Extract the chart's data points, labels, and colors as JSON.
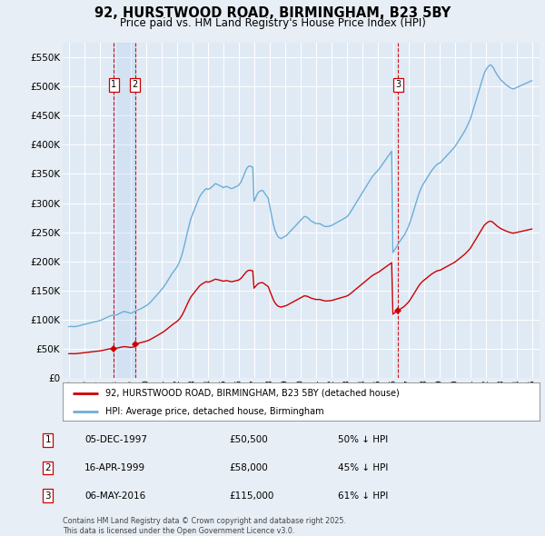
{
  "title": "92, HURSTWOOD ROAD, BIRMINGHAM, B23 5BY",
  "subtitle": "Price paid vs. HM Land Registry's House Price Index (HPI)",
  "legend_house": "92, HURSTWOOD ROAD, BIRMINGHAM, B23 5BY (detached house)",
  "legend_hpi": "HPI: Average price, detached house, Birmingham",
  "footer": "Contains HM Land Registry data © Crown copyright and database right 2025.\nThis data is licensed under the Open Government Licence v3.0.",
  "transactions": [
    {
      "num": 1,
      "date": "05-DEC-1997",
      "price": "£50,500",
      "hpi": "50% ↓ HPI",
      "year": 1997.92,
      "value": 50500
    },
    {
      "num": 2,
      "date": "16-APR-1999",
      "price": "£58,000",
      "hpi": "45% ↓ HPI",
      "year": 1999.29,
      "value": 58000
    },
    {
      "num": 3,
      "date": "06-MAY-2016",
      "price": "£115,000",
      "hpi": "61% ↓ HPI",
      "year": 2016.34,
      "value": 115000
    }
  ],
  "hpi_line_color": "#6baed6",
  "house_line_color": "#cc0000",
  "vline_color": "#cc0000",
  "shade_color": "#ddeeff",
  "bg_color": "#e8eef5",
  "plot_bg_color": "#e0eaf5",
  "grid_color": "#ffffff",
  "ylim": [
    0,
    575000
  ],
  "yticks": [
    0,
    50000,
    100000,
    150000,
    200000,
    250000,
    300000,
    350000,
    400000,
    450000,
    500000,
    550000
  ],
  "xlim": [
    1994.6,
    2025.5
  ],
  "xtick_years": [
    1995,
    1996,
    1997,
    1998,
    1999,
    2000,
    2001,
    2002,
    2003,
    2004,
    2005,
    2006,
    2007,
    2008,
    2009,
    2010,
    2011,
    2012,
    2013,
    2014,
    2015,
    2016,
    2017,
    2018,
    2019,
    2020,
    2021,
    2022,
    2023,
    2024,
    2025
  ],
  "hpi_years": [
    1995.0,
    1995.083,
    1995.167,
    1995.25,
    1995.333,
    1995.417,
    1995.5,
    1995.583,
    1995.667,
    1995.75,
    1995.833,
    1995.917,
    1996.0,
    1996.083,
    1996.167,
    1996.25,
    1996.333,
    1996.417,
    1996.5,
    1996.583,
    1996.667,
    1996.75,
    1996.833,
    1996.917,
    1997.0,
    1997.083,
    1997.167,
    1997.25,
    1997.333,
    1997.417,
    1997.5,
    1997.583,
    1997.667,
    1997.75,
    1997.833,
    1997.917,
    1998.0,
    1998.083,
    1998.167,
    1998.25,
    1998.333,
    1998.417,
    1998.5,
    1998.583,
    1998.667,
    1998.75,
    1998.833,
    1998.917,
    1999.0,
    1999.083,
    1999.167,
    1999.25,
    1999.333,
    1999.417,
    1999.5,
    1999.583,
    1999.667,
    1999.75,
    1999.833,
    1999.917,
    2000.0,
    2000.083,
    2000.167,
    2000.25,
    2000.333,
    2000.417,
    2000.5,
    2000.583,
    2000.667,
    2000.75,
    2000.833,
    2000.917,
    2001.0,
    2001.083,
    2001.167,
    2001.25,
    2001.333,
    2001.417,
    2001.5,
    2001.583,
    2001.667,
    2001.75,
    2001.833,
    2001.917,
    2002.0,
    2002.083,
    2002.167,
    2002.25,
    2002.333,
    2002.417,
    2002.5,
    2002.583,
    2002.667,
    2002.75,
    2002.833,
    2002.917,
    2003.0,
    2003.083,
    2003.167,
    2003.25,
    2003.333,
    2003.417,
    2003.5,
    2003.583,
    2003.667,
    2003.75,
    2003.833,
    2003.917,
    2004.0,
    2004.083,
    2004.167,
    2004.25,
    2004.333,
    2004.417,
    2004.5,
    2004.583,
    2004.667,
    2004.75,
    2004.833,
    2004.917,
    2005.0,
    2005.083,
    2005.167,
    2005.25,
    2005.333,
    2005.417,
    2005.5,
    2005.583,
    2005.667,
    2005.75,
    2005.833,
    2005.917,
    2006.0,
    2006.083,
    2006.167,
    2006.25,
    2006.333,
    2006.417,
    2006.5,
    2006.583,
    2006.667,
    2006.75,
    2006.833,
    2006.917,
    2007.0,
    2007.083,
    2007.167,
    2007.25,
    2007.333,
    2007.417,
    2007.5,
    2007.583,
    2007.667,
    2007.75,
    2007.833,
    2007.917,
    2008.0,
    2008.083,
    2008.167,
    2008.25,
    2008.333,
    2008.417,
    2008.5,
    2008.583,
    2008.667,
    2008.75,
    2008.833,
    2008.917,
    2009.0,
    2009.083,
    2009.167,
    2009.25,
    2009.333,
    2009.417,
    2009.5,
    2009.583,
    2009.667,
    2009.75,
    2009.833,
    2009.917,
    2010.0,
    2010.083,
    2010.167,
    2010.25,
    2010.333,
    2010.417,
    2010.5,
    2010.583,
    2010.667,
    2010.75,
    2010.833,
    2010.917,
    2011.0,
    2011.083,
    2011.167,
    2011.25,
    2011.333,
    2011.417,
    2011.5,
    2011.583,
    2011.667,
    2011.75,
    2011.833,
    2011.917,
    2012.0,
    2012.083,
    2012.167,
    2012.25,
    2012.333,
    2012.417,
    2012.5,
    2012.583,
    2012.667,
    2012.75,
    2012.833,
    2012.917,
    2013.0,
    2013.083,
    2013.167,
    2013.25,
    2013.333,
    2013.417,
    2013.5,
    2013.583,
    2013.667,
    2013.75,
    2013.833,
    2013.917,
    2014.0,
    2014.083,
    2014.167,
    2014.25,
    2014.333,
    2014.417,
    2014.5,
    2014.583,
    2014.667,
    2014.75,
    2014.833,
    2014.917,
    2015.0,
    2015.083,
    2015.167,
    2015.25,
    2015.333,
    2015.417,
    2015.5,
    2015.583,
    2015.667,
    2015.75,
    2015.833,
    2015.917,
    2016.0,
    2016.083,
    2016.167,
    2016.25,
    2016.333,
    2016.417,
    2016.5,
    2016.583,
    2016.667,
    2016.75,
    2016.833,
    2016.917,
    2017.0,
    2017.083,
    2017.167,
    2017.25,
    2017.333,
    2017.417,
    2017.5,
    2017.583,
    2017.667,
    2017.75,
    2017.833,
    2017.917,
    2018.0,
    2018.083,
    2018.167,
    2018.25,
    2018.333,
    2018.417,
    2018.5,
    2018.583,
    2018.667,
    2018.75,
    2018.833,
    2018.917,
    2019.0,
    2019.083,
    2019.167,
    2019.25,
    2019.333,
    2019.417,
    2019.5,
    2019.583,
    2019.667,
    2019.75,
    2019.833,
    2019.917,
    2020.0,
    2020.083,
    2020.167,
    2020.25,
    2020.333,
    2020.417,
    2020.5,
    2020.583,
    2020.667,
    2020.75,
    2020.833,
    2020.917,
    2021.0,
    2021.083,
    2021.167,
    2021.25,
    2021.333,
    2021.417,
    2021.5,
    2021.583,
    2021.667,
    2021.75,
    2021.833,
    2021.917,
    2022.0,
    2022.083,
    2022.167,
    2022.25,
    2022.333,
    2022.417,
    2022.5,
    2022.583,
    2022.667,
    2022.75,
    2022.833,
    2022.917,
    2023.0,
    2023.083,
    2023.167,
    2023.25,
    2023.333,
    2023.417,
    2023.5,
    2023.583,
    2023.667,
    2023.75,
    2023.833,
    2023.917,
    2024.0,
    2024.083,
    2024.167,
    2024.25,
    2024.333,
    2024.417,
    2024.5,
    2024.583,
    2024.667,
    2024.75,
    2024.833,
    2024.917,
    2025.0
  ],
  "hpi_values": [
    88000,
    88200,
    88400,
    88100,
    87800,
    88100,
    88500,
    89000,
    89500,
    90200,
    90800,
    91300,
    91800,
    92300,
    92900,
    93500,
    94100,
    94700,
    95200,
    95700,
    96200,
    96700,
    97200,
    97700,
    98200,
    99100,
    100000,
    101100,
    102200,
    103300,
    104300,
    105200,
    106100,
    107000,
    107800,
    107200,
    107600,
    108100,
    109000,
    110100,
    111200,
    112300,
    113200,
    114000,
    113500,
    112900,
    112200,
    111500,
    110800,
    111700,
    112600,
    113600,
    114700,
    115800,
    116800,
    117800,
    118800,
    119900,
    121100,
    122400,
    123700,
    125200,
    126800,
    129000,
    131300,
    133700,
    136100,
    138600,
    141100,
    143700,
    146200,
    148800,
    151400,
    154100,
    156900,
    160200,
    163700,
    167200,
    170800,
    174500,
    178200,
    181200,
    184200,
    187200,
    190200,
    194500,
    198900,
    205100,
    211700,
    220000,
    228700,
    238500,
    248400,
    257300,
    266200,
    274200,
    279700,
    285200,
    290800,
    296400,
    301900,
    307400,
    312000,
    315600,
    318200,
    320800,
    323400,
    325100,
    323400,
    324400,
    325400,
    327400,
    329500,
    331500,
    333500,
    332500,
    331400,
    330400,
    329400,
    328300,
    326400,
    327400,
    328400,
    328400,
    327300,
    326200,
    325100,
    325100,
    326200,
    327200,
    328200,
    329300,
    330400,
    333500,
    336700,
    342000,
    347400,
    352800,
    358200,
    361400,
    363600,
    363600,
    362500,
    361400,
    303000,
    308000,
    313100,
    317500,
    319800,
    320900,
    321900,
    320900,
    317800,
    314600,
    311500,
    308300,
    297000,
    285600,
    274700,
    264100,
    255500,
    249300,
    244700,
    241500,
    240200,
    239000,
    240200,
    241500,
    242700,
    244000,
    246400,
    248700,
    251100,
    253400,
    255800,
    258200,
    260500,
    262900,
    265200,
    267600,
    269900,
    272200,
    274500,
    276900,
    276900,
    275700,
    274500,
    272200,
    269900,
    268600,
    267400,
    266200,
    264900,
    264900,
    264900,
    264900,
    263600,
    262400,
    261100,
    259900,
    259900,
    259900,
    259900,
    261100,
    261100,
    262400,
    263600,
    264900,
    266200,
    267400,
    268600,
    269900,
    271100,
    272400,
    273600,
    274900,
    276100,
    278600,
    281100,
    284700,
    288300,
    291900,
    295500,
    299100,
    302600,
    306200,
    309800,
    313400,
    317000,
    320600,
    324200,
    327800,
    331300,
    334900,
    338500,
    342100,
    345700,
    348200,
    350600,
    353000,
    355400,
    357700,
    360800,
    364000,
    367100,
    370200,
    373400,
    376500,
    379600,
    382800,
    385900,
    389000,
    215000,
    218500,
    222000,
    225600,
    229300,
    233000,
    236800,
    239600,
    242400,
    245700,
    250200,
    254700,
    259300,
    265100,
    271900,
    279000,
    286100,
    293300,
    300500,
    307700,
    314900,
    321000,
    325900,
    330700,
    334300,
    337800,
    341300,
    344900,
    348400,
    351900,
    355500,
    358300,
    360900,
    363600,
    366200,
    367400,
    368600,
    369800,
    372200,
    374600,
    377000,
    379400,
    381800,
    384200,
    386600,
    389000,
    391400,
    393800,
    396200,
    399600,
    403000,
    406500,
    410000,
    413600,
    417200,
    420800,
    424400,
    428800,
    433500,
    438200,
    443000,
    450000,
    457200,
    464500,
    471800,
    479100,
    486400,
    493800,
    501100,
    508400,
    515700,
    523000,
    527200,
    531200,
    534200,
    536200,
    537200,
    535200,
    532200,
    528200,
    524200,
    520200,
    517200,
    514200,
    511200,
    509200,
    507200,
    505200,
    503200,
    501200,
    500200,
    498200,
    497200,
    496200,
    496200,
    497200,
    498200,
    499200,
    500200,
    501200,
    502200,
    503200,
    504200,
    505200,
    506200,
    507200,
    508200,
    509200,
    510200
  ]
}
